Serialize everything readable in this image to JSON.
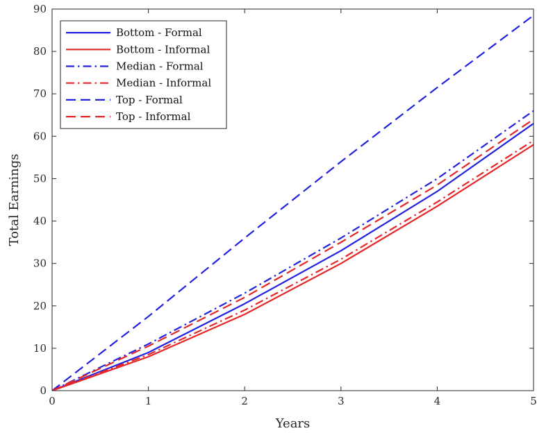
{
  "chart_data": {
    "type": "line",
    "xlabel": "Years",
    "ylabel": "Total Earnings",
    "xlim": [
      0,
      5
    ],
    "ylim": [
      0,
      90
    ],
    "xticks": [
      "0",
      "1",
      "2",
      "3",
      "4",
      "5"
    ],
    "yticks": [
      "0",
      "10",
      "20",
      "30",
      "40",
      "50",
      "60",
      "70",
      "80",
      "90"
    ],
    "grid": false,
    "legend_position": "top-left",
    "series": [
      {
        "name": "Bottom - Formal",
        "color": "#2222dd",
        "style": "solid",
        "x": [
          0,
          1,
          2,
          3,
          4,
          5
        ],
        "y": [
          0,
          9,
          20.5,
          33,
          47,
          63
        ]
      },
      {
        "name": "Bottom - Informal",
        "color": "#e62626",
        "style": "solid",
        "x": [
          0,
          1,
          2,
          3,
          4,
          5
        ],
        "y": [
          0,
          8,
          18,
          30,
          43.5,
          58
        ]
      },
      {
        "name": "Median - Formal",
        "color": "#2222dd",
        "style": "dashdot",
        "x": [
          0,
          1,
          2,
          3,
          4,
          5
        ],
        "y": [
          0,
          11,
          23,
          36,
          50,
          66
        ]
      },
      {
        "name": "Median - Informal",
        "color": "#e62626",
        "style": "dashdot",
        "x": [
          0,
          1,
          2,
          3,
          4,
          5
        ],
        "y": [
          0,
          8.5,
          19,
          31,
          44.5,
          59
        ]
      },
      {
        "name": "Top - Formal",
        "color": "#2222dd",
        "style": "dashed",
        "x": [
          0,
          1,
          2,
          3,
          4,
          5
        ],
        "y": [
          0,
          17.5,
          36,
          54,
          71.5,
          88.5
        ]
      },
      {
        "name": "Top - Informal",
        "color": "#e62626",
        "style": "dashed",
        "x": [
          0,
          1,
          2,
          3,
          4,
          5
        ],
        "y": [
          0,
          10.5,
          22,
          35,
          48.5,
          64
        ]
      }
    ]
  }
}
